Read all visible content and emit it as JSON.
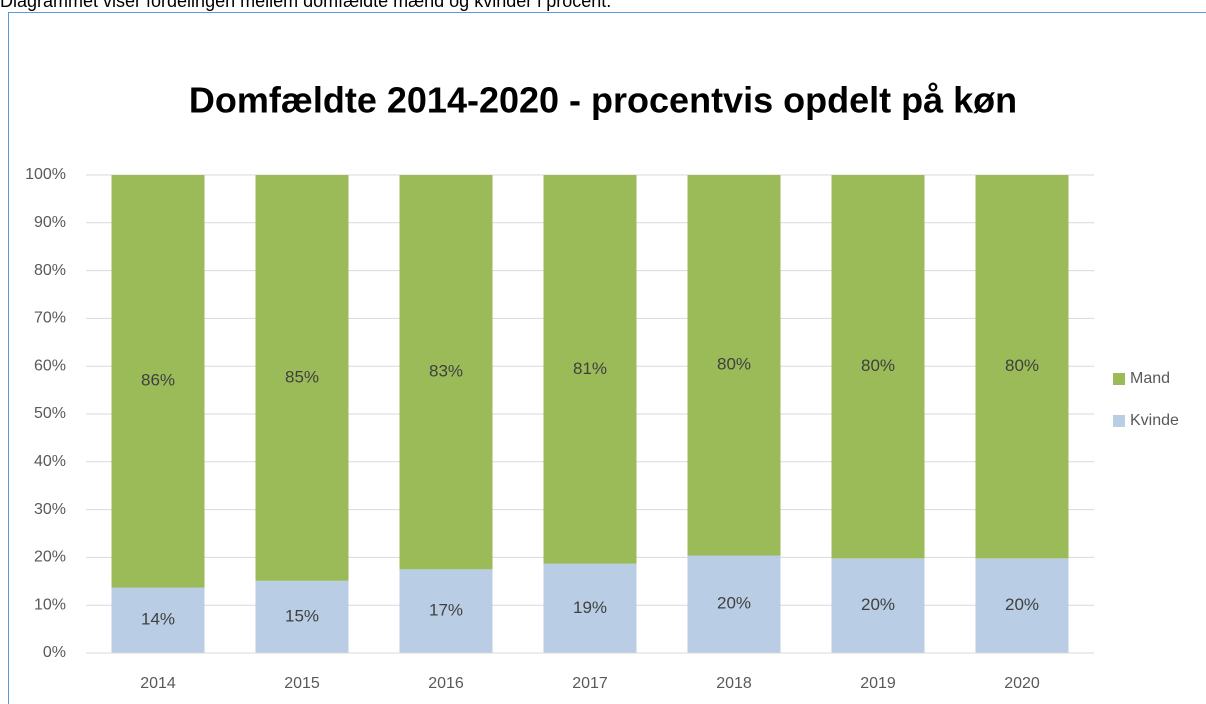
{
  "caption": "Diagrammet viser fordelingen mellem domfældte mænd og kvinder i procent.",
  "chart_data": {
    "type": "stacked-bar",
    "title": "Domfældte 2014-2020 - procentvis opdelt på køn",
    "categories": [
      "2014",
      "2015",
      "2016",
      "2017",
      "2018",
      "2019",
      "2020"
    ],
    "series": [
      {
        "name": "Kvinde",
        "color": "#b9cde5",
        "values": [
          13.7,
          15.1,
          17.5,
          18.7,
          20.4,
          19.8,
          19.8
        ],
        "value_labels": [
          "14%",
          "15%",
          "17%",
          "19%",
          "20%",
          "20%",
          "20%"
        ]
      },
      {
        "name": "Mand",
        "color": "#9bbb59",
        "values": [
          86.3,
          84.9,
          82.5,
          81.3,
          79.6,
          80.2,
          80.2
        ],
        "value_labels": [
          "86%",
          "85%",
          "83%",
          "81%",
          "80%",
          "80%",
          "80%"
        ]
      }
    ],
    "ylim": [
      0,
      100
    ],
    "yticks": [
      {
        "value": 0,
        "label": "0%"
      },
      {
        "value": 10,
        "label": "10%"
      },
      {
        "value": 20,
        "label": "20%"
      },
      {
        "value": 30,
        "label": "30%"
      },
      {
        "value": 40,
        "label": "40%"
      },
      {
        "value": 50,
        "label": "50%"
      },
      {
        "value": 60,
        "label": "60%"
      },
      {
        "value": 70,
        "label": "70%"
      },
      {
        "value": 80,
        "label": "80%"
      },
      {
        "value": 90,
        "label": "90%"
      },
      {
        "value": 100,
        "label": "100%"
      }
    ],
    "grid": true,
    "legend": "right"
  }
}
